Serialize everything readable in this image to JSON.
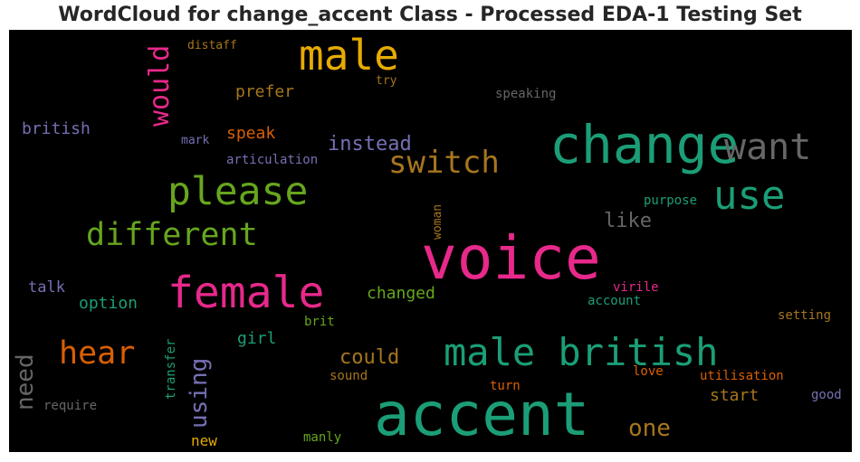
{
  "title": "WordCloud for change_accent Class - Processed EDA-1 Testing Set",
  "words": [
    {
      "key": "male",
      "text": "male",
      "color": "#e6ab02"
    },
    {
      "key": "would",
      "text": "would",
      "color": "#e7298a"
    },
    {
      "key": "distaff",
      "text": "distaff",
      "color": "#a6761d"
    },
    {
      "key": "prefer",
      "text": "prefer",
      "color": "#a6761d"
    },
    {
      "key": "try",
      "text": "try",
      "color": "#a6761d"
    },
    {
      "key": "speaking",
      "text": "speaking",
      "color": "#666666"
    },
    {
      "key": "british",
      "text": "british",
      "color": "#7570b3"
    },
    {
      "key": "speak",
      "text": "speak",
      "color": "#d95f02"
    },
    {
      "key": "mark",
      "text": "mark",
      "color": "#7570b3"
    },
    {
      "key": "change",
      "text": "change",
      "color": "#1b9e77"
    },
    {
      "key": "want",
      "text": "want",
      "color": "#666666"
    },
    {
      "key": "instead",
      "text": "instead",
      "color": "#7570b3"
    },
    {
      "key": "switch",
      "text": "switch",
      "color": "#a6761d"
    },
    {
      "key": "articulation",
      "text": "articulation",
      "color": "#7570b3"
    },
    {
      "key": "please",
      "text": "please",
      "color": "#66a61e"
    },
    {
      "key": "use",
      "text": "use",
      "color": "#1b9e77"
    },
    {
      "key": "purpose",
      "text": "purpose",
      "color": "#1b9e77"
    },
    {
      "key": "woman",
      "text": "woman",
      "color": "#a6761d"
    },
    {
      "key": "like",
      "text": "like",
      "color": "#666666"
    },
    {
      "key": "different",
      "text": "different",
      "color": "#66a61e"
    },
    {
      "key": "voice",
      "text": "voice",
      "color": "#e7298a"
    },
    {
      "key": "talk",
      "text": "talk",
      "color": "#7570b3"
    },
    {
      "key": "female",
      "text": "female",
      "color": "#e7298a"
    },
    {
      "key": "virile",
      "text": "virile",
      "color": "#e7298a"
    },
    {
      "key": "option",
      "text": "option",
      "color": "#1b9e77"
    },
    {
      "key": "changed",
      "text": "changed",
      "color": "#66a61e"
    },
    {
      "key": "account",
      "text": "account",
      "color": "#1b9e77"
    },
    {
      "key": "brit",
      "text": "brit",
      "color": "#66a61e"
    },
    {
      "key": "setting",
      "text": "setting",
      "color": "#a6761d"
    },
    {
      "key": "hear",
      "text": "hear",
      "color": "#d95f02"
    },
    {
      "key": "male_british",
      "text": "male british",
      "color": "#1b9e77"
    },
    {
      "key": "girl",
      "text": "girl",
      "color": "#1b9e77"
    },
    {
      "key": "could",
      "text": "could",
      "color": "#a6761d"
    },
    {
      "key": "need",
      "text": "need",
      "color": "#666666"
    },
    {
      "key": "using",
      "text": "using",
      "color": "#7570b3"
    },
    {
      "key": "transfer",
      "text": "transfer",
      "color": "#1b9e77"
    },
    {
      "key": "sound",
      "text": "sound",
      "color": "#a6761d"
    },
    {
      "key": "love",
      "text": "love",
      "color": "#d95f02"
    },
    {
      "key": "utilisation",
      "text": "utilisation",
      "color": "#d95f02"
    },
    {
      "key": "turn",
      "text": "turn",
      "color": "#d95f02"
    },
    {
      "key": "start",
      "text": "start",
      "color": "#a6761d"
    },
    {
      "key": "good",
      "text": "good",
      "color": "#7570b3"
    },
    {
      "key": "require",
      "text": "require",
      "color": "#666666"
    },
    {
      "key": "accent",
      "text": "accent",
      "color": "#1b9e77"
    },
    {
      "key": "new",
      "text": "new",
      "color": "#e6ab02"
    },
    {
      "key": "manly",
      "text": "manly",
      "color": "#66a61e"
    },
    {
      "key": "one",
      "text": "one",
      "color": "#a6761d"
    }
  ]
}
